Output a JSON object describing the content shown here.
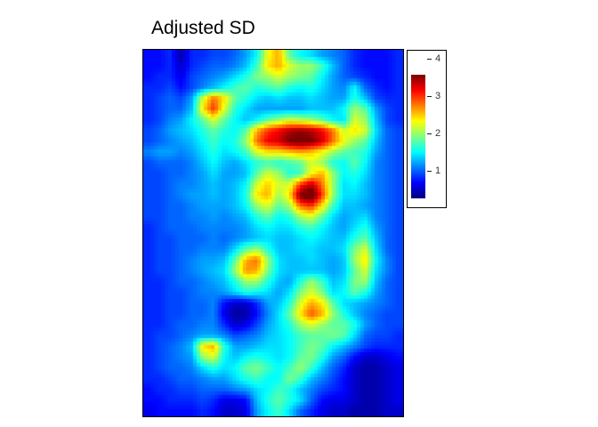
{
  "title": "Adjusted SD",
  "colorbar": {
    "position": "right",
    "orientation": "vertical",
    "ticks": [
      {
        "label": "4",
        "value": 4
      },
      {
        "label": "3",
        "value": 3
      },
      {
        "label": "2",
        "value": 2
      },
      {
        "label": "1",
        "value": 1
      }
    ]
  },
  "chart_data": {
    "type": "heatmap",
    "title": "Adjusted SD",
    "colormap": "jet",
    "vmin": 0.26,
    "vmax": 3.57,
    "legend_position": "right",
    "colorbar_ticks": [
      4,
      3,
      2,
      1
    ],
    "grid_cols": 24,
    "grid_rows": 34,
    "values": [
      [
        0.7,
        0.7,
        0.8,
        0.4,
        0.8,
        0.8,
        0.9,
        0.9,
        1.0,
        1.2,
        1.5,
        2.3,
        2.6,
        1.8,
        1.5,
        1.4,
        1.2,
        1.1,
        1.0,
        0.8,
        0.7,
        0.7,
        0.7,
        0.8
      ],
      [
        0.7,
        0.7,
        0.8,
        0.5,
        0.8,
        0.9,
        1.0,
        1.0,
        1.1,
        1.3,
        1.7,
        2.4,
        2.6,
        2.2,
        2.0,
        2.0,
        1.7,
        1.3,
        1.0,
        0.8,
        0.7,
        0.7,
        0.7,
        0.8
      ],
      [
        0.7,
        0.8,
        0.8,
        0.6,
        0.9,
        1.0,
        1.1,
        1.2,
        1.4,
        1.6,
        1.9,
        2.0,
        2.2,
        2.0,
        1.9,
        1.8,
        1.5,
        1.2,
        1.0,
        0.9,
        0.8,
        0.7,
        0.7,
        0.8
      ],
      [
        0.8,
        0.8,
        0.9,
        0.7,
        0.9,
        1.1,
        1.3,
        1.5,
        1.7,
        1.8,
        1.6,
        1.7,
        1.8,
        1.6,
        1.5,
        1.6,
        1.4,
        1.2,
        1.1,
        1.5,
        1.0,
        0.8,
        0.7,
        0.8
      ],
      [
        0.8,
        0.9,
        1.0,
        0.9,
        1.2,
        2.2,
        2.8,
        2.4,
        1.8,
        1.6,
        1.4,
        1.3,
        1.4,
        1.3,
        1.3,
        1.4,
        1.3,
        1.2,
        1.2,
        1.6,
        1.3,
        0.9,
        0.8,
        0.8
      ],
      [
        0.8,
        0.9,
        1.0,
        1.0,
        1.3,
        2.4,
        3.0,
        2.2,
        1.6,
        1.4,
        1.2,
        1.2,
        1.2,
        1.2,
        1.2,
        1.3,
        1.3,
        1.3,
        1.5,
        2.0,
        1.8,
        1.2,
        0.9,
        0.8
      ],
      [
        0.8,
        0.9,
        1.1,
        1.2,
        1.5,
        1.8,
        2.2,
        1.8,
        1.5,
        1.3,
        1.5,
        1.8,
        2.0,
        2.2,
        2.1,
        2.0,
        1.8,
        1.5,
        1.4,
        2.2,
        2.0,
        1.3,
        0.9,
        0.8
      ],
      [
        0.9,
        1.0,
        1.2,
        1.3,
        1.4,
        1.6,
        1.8,
        1.6,
        1.5,
        1.8,
        2.6,
        3.0,
        3.2,
        3.4,
        3.5,
        3.4,
        3.2,
        2.8,
        2.2,
        2.4,
        2.2,
        1.4,
        1.0,
        0.9
      ],
      [
        0.9,
        1.0,
        1.1,
        1.2,
        1.3,
        1.5,
        1.7,
        1.5,
        1.6,
        2.0,
        2.8,
        3.2,
        3.3,
        3.6,
        3.7,
        3.6,
        3.3,
        2.8,
        2.3,
        2.0,
        1.8,
        1.3,
        1.0,
        0.9
      ],
      [
        1.1,
        1.2,
        1.2,
        1.1,
        1.2,
        1.4,
        1.6,
        1.4,
        1.5,
        1.7,
        2.2,
        2.4,
        2.4,
        2.5,
        2.6,
        2.5,
        2.3,
        2.0,
        1.8,
        1.7,
        1.6,
        1.2,
        1.0,
        0.9
      ],
      [
        0.9,
        1.0,
        1.0,
        1.0,
        1.1,
        1.3,
        1.5,
        1.3,
        1.2,
        1.4,
        1.6,
        1.7,
        1.6,
        1.7,
        1.8,
        2.2,
        2.0,
        1.6,
        1.5,
        1.8,
        1.5,
        1.1,
        1.0,
        0.9
      ],
      [
        0.9,
        0.9,
        1.0,
        1.0,
        1.1,
        1.2,
        1.4,
        1.2,
        1.2,
        1.3,
        1.8,
        2.2,
        2.0,
        1.6,
        1.7,
        2.3,
        2.6,
        2.0,
        1.5,
        1.6,
        1.4,
        1.1,
        1.0,
        0.9
      ],
      [
        0.9,
        0.9,
        1.0,
        1.1,
        1.1,
        1.2,
        1.3,
        1.2,
        1.3,
        1.5,
        2.2,
        2.5,
        2.2,
        2.2,
        3.0,
        3.4,
        2.8,
        2.0,
        1.4,
        1.5,
        1.3,
        1.1,
        1.0,
        0.9
      ],
      [
        0.9,
        0.9,
        1.0,
        1.1,
        1.2,
        1.2,
        1.3,
        1.2,
        1.3,
        1.6,
        2.4,
        2.6,
        2.0,
        2.4,
        3.6,
        3.9,
        3.0,
        2.0,
        1.4,
        1.4,
        1.3,
        1.1,
        1.0,
        0.9
      ],
      [
        0.9,
        0.9,
        1.0,
        1.0,
        1.1,
        1.2,
        1.2,
        1.2,
        1.3,
        1.5,
        2.0,
        2.2,
        1.8,
        2.0,
        2.8,
        3.0,
        2.4,
        1.7,
        1.3,
        1.3,
        1.2,
        1.1,
        1.0,
        0.9
      ],
      [
        0.9,
        0.9,
        1.0,
        1.0,
        1.1,
        1.1,
        1.2,
        1.1,
        1.2,
        1.3,
        1.6,
        1.8,
        1.5,
        1.6,
        2.0,
        2.2,
        1.8,
        1.4,
        1.2,
        1.3,
        1.4,
        1.1,
        1.0,
        0.9
      ],
      [
        0.8,
        0.9,
        1.0,
        1.0,
        1.0,
        1.1,
        1.1,
        1.1,
        1.1,
        1.2,
        1.4,
        1.5,
        1.4,
        1.4,
        1.6,
        1.7,
        1.5,
        1.3,
        1.2,
        1.4,
        1.6,
        1.2,
        1.0,
        0.9
      ],
      [
        0.8,
        0.9,
        0.9,
        1.0,
        1.0,
        1.0,
        1.1,
        1.0,
        1.1,
        1.2,
        1.3,
        1.4,
        1.3,
        1.3,
        1.4,
        1.5,
        1.4,
        1.3,
        1.3,
        1.6,
        1.8,
        1.3,
        1.0,
        0.9
      ],
      [
        0.8,
        0.9,
        0.9,
        1.0,
        1.0,
        1.1,
        1.1,
        1.1,
        1.4,
        1.8,
        2.0,
        1.6,
        1.3,
        1.3,
        1.4,
        1.4,
        1.3,
        1.3,
        1.4,
        1.9,
        2.2,
        1.4,
        1.0,
        0.9
      ],
      [
        0.8,
        0.9,
        0.9,
        1.0,
        1.1,
        1.2,
        1.2,
        1.3,
        1.8,
        2.6,
        2.8,
        2.0,
        1.4,
        1.3,
        1.3,
        1.4,
        1.3,
        1.2,
        1.3,
        2.0,
        2.4,
        1.5,
        1.1,
        0.9
      ],
      [
        0.8,
        0.9,
        0.9,
        1.0,
        1.1,
        1.2,
        1.3,
        1.4,
        2.0,
        2.7,
        2.6,
        1.9,
        1.4,
        1.3,
        1.3,
        1.3,
        1.3,
        1.2,
        1.3,
        1.8,
        2.2,
        1.4,
        1.1,
        0.9
      ],
      [
        0.8,
        0.8,
        0.9,
        1.0,
        1.0,
        1.1,
        1.2,
        1.3,
        1.6,
        2.0,
        2.0,
        1.6,
        1.3,
        1.2,
        1.6,
        2.0,
        1.7,
        1.3,
        1.4,
        1.9,
        2.0,
        1.3,
        1.0,
        0.9
      ],
      [
        0.8,
        0.8,
        0.9,
        0.9,
        1.0,
        1.1,
        1.1,
        1.2,
        1.4,
        1.6,
        1.5,
        1.4,
        1.2,
        1.4,
        1.9,
        2.2,
        1.9,
        1.4,
        1.5,
        1.8,
        1.6,
        1.2,
        1.0,
        0.9
      ],
      [
        0.8,
        0.8,
        0.9,
        0.9,
        1.0,
        1.0,
        1.1,
        0.7,
        0.5,
        0.5,
        0.8,
        1.2,
        1.3,
        1.6,
        2.2,
        2.6,
        2.4,
        1.8,
        1.4,
        1.3,
        1.2,
        1.1,
        1.0,
        0.9
      ],
      [
        0.8,
        0.8,
        0.9,
        0.9,
        1.0,
        1.0,
        1.1,
        0.6,
        0.35,
        0.4,
        0.7,
        1.1,
        1.4,
        1.8,
        2.4,
        2.9,
        2.6,
        2.0,
        1.6,
        1.3,
        1.1,
        1.0,
        0.9,
        0.9
      ],
      [
        0.8,
        0.8,
        0.9,
        1.0,
        1.0,
        1.1,
        1.1,
        0.8,
        0.5,
        0.6,
        0.9,
        1.2,
        1.4,
        1.6,
        2.0,
        2.2,
        2.0,
        1.8,
        1.8,
        1.6,
        1.2,
        1.0,
        0.9,
        0.9
      ],
      [
        0.8,
        0.9,
        0.9,
        1.0,
        1.1,
        1.2,
        1.2,
        1.1,
        0.9,
        1.0,
        1.1,
        1.3,
        1.4,
        1.5,
        1.7,
        1.8,
        1.8,
        1.9,
        1.8,
        1.4,
        1.0,
        0.9,
        0.9,
        0.8
      ],
      [
        0.8,
        0.9,
        1.0,
        1.1,
        1.3,
        2.4,
        2.6,
        1.6,
        1.2,
        1.2,
        1.3,
        1.4,
        1.4,
        1.5,
        1.7,
        1.9,
        1.8,
        1.5,
        1.3,
        1.1,
        0.9,
        0.8,
        0.8,
        0.8
      ],
      [
        0.8,
        0.9,
        1.0,
        1.1,
        1.2,
        2.0,
        2.2,
        1.5,
        1.3,
        1.5,
        1.6,
        1.5,
        1.4,
        1.5,
        1.8,
        1.9,
        1.6,
        1.2,
        1.0,
        0.7,
        0.5,
        0.5,
        0.6,
        0.7
      ],
      [
        0.8,
        0.9,
        1.0,
        1.0,
        1.1,
        1.4,
        1.6,
        1.4,
        1.5,
        1.8,
        1.9,
        1.7,
        1.5,
        1.7,
        2.0,
        1.7,
        1.3,
        1.0,
        0.8,
        0.5,
        0.4,
        0.4,
        0.5,
        0.6
      ],
      [
        0.8,
        0.8,
        0.9,
        1.0,
        1.0,
        1.1,
        1.2,
        1.2,
        1.4,
        1.6,
        1.7,
        1.5,
        1.5,
        1.9,
        1.7,
        1.3,
        1.1,
        0.9,
        0.7,
        0.5,
        0.4,
        0.4,
        0.5,
        0.6
      ],
      [
        0.7,
        0.8,
        0.8,
        0.9,
        0.9,
        1.0,
        1.0,
        1.0,
        1.1,
        1.2,
        1.4,
        1.5,
        1.7,
        1.6,
        1.3,
        1.1,
        0.9,
        0.8,
        0.7,
        0.5,
        0.4,
        0.4,
        0.5,
        0.6
      ],
      [
        0.7,
        0.7,
        0.8,
        0.8,
        0.8,
        0.9,
        0.8,
        0.6,
        0.6,
        0.7,
        1.3,
        1.6,
        1.8,
        1.6,
        1.4,
        1.0,
        0.7,
        0.6,
        0.6,
        0.5,
        0.4,
        0.4,
        0.5,
        0.6
      ],
      [
        0.6,
        0.7,
        0.7,
        0.7,
        0.7,
        0.8,
        0.7,
        0.5,
        0.5,
        0.6,
        1.2,
        1.5,
        1.7,
        1.4,
        1.0,
        0.8,
        0.6,
        0.5,
        0.5,
        0.4,
        0.4,
        0.4,
        0.5,
        0.5
      ]
    ]
  }
}
